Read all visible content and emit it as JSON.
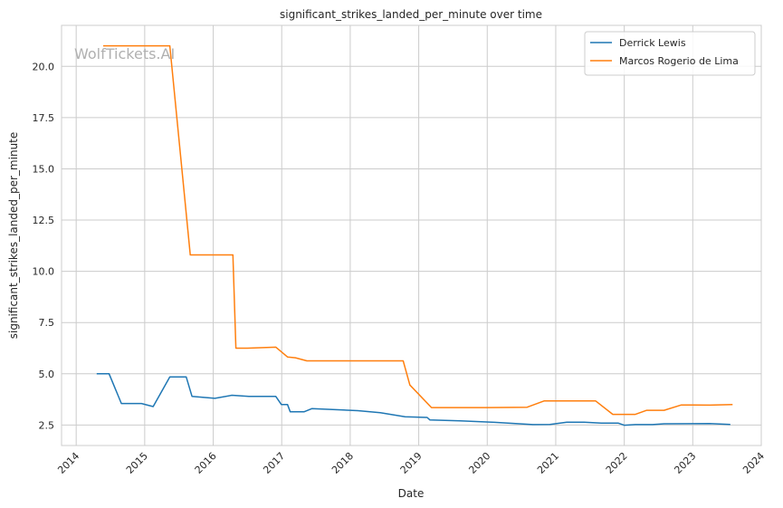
{
  "chart_data": {
    "type": "line",
    "title": "significant_strikes_landed_per_minute over time",
    "xlabel": "Date",
    "ylabel": "significant_strikes_landed_per_minute",
    "watermark": "WolfTickets.AI",
    "x_ticks": [
      "2014",
      "2015",
      "2016",
      "2017",
      "2018",
      "2019",
      "2020",
      "2021",
      "2022",
      "2023",
      "2024"
    ],
    "y_ticks": [
      "2.5",
      "5.0",
      "7.5",
      "10.0",
      "12.5",
      "15.0",
      "17.5",
      "20.0"
    ],
    "xlim": [
      "2013-10-15",
      "2024-01-01"
    ],
    "ylim": [
      1.5,
      22.0
    ],
    "grid": true,
    "legend_position": "top-right",
    "series": [
      {
        "name": "Derrick Lewis",
        "color": "#1f77b4",
        "points": [
          [
            "2014-04-20",
            5.0
          ],
          [
            "2014-06-25",
            5.0
          ],
          [
            "2014-08-30",
            3.55
          ],
          [
            "2014-12-15",
            3.55
          ],
          [
            "2015-02-15",
            3.4
          ],
          [
            "2015-05-15",
            4.85
          ],
          [
            "2015-08-10",
            4.85
          ],
          [
            "2015-09-10",
            3.9
          ],
          [
            "2016-01-10",
            3.8
          ],
          [
            "2016-04-10",
            3.95
          ],
          [
            "2016-07-10",
            3.9
          ],
          [
            "2016-11-30",
            3.9
          ],
          [
            "2016-12-30",
            3.5
          ],
          [
            "2017-02-01",
            3.5
          ],
          [
            "2017-02-15",
            3.15
          ],
          [
            "2017-05-01",
            3.15
          ],
          [
            "2017-06-10",
            3.3
          ],
          [
            "2018-02-10",
            3.2
          ],
          [
            "2018-06-10",
            3.1
          ],
          [
            "2018-10-20",
            2.9
          ],
          [
            "2019-02-15",
            2.87
          ],
          [
            "2019-03-01",
            2.75
          ],
          [
            "2019-08-10",
            2.7
          ],
          [
            "2020-02-10",
            2.63
          ],
          [
            "2020-09-01",
            2.52
          ],
          [
            "2020-12-01",
            2.53
          ],
          [
            "2021-03-01",
            2.64
          ],
          [
            "2021-06-01",
            2.64
          ],
          [
            "2021-09-01",
            2.59
          ],
          [
            "2021-12-01",
            2.59
          ],
          [
            "2022-01-01",
            2.49
          ],
          [
            "2022-03-01",
            2.52
          ],
          [
            "2022-06-01",
            2.52
          ],
          [
            "2022-08-01",
            2.56
          ],
          [
            "2023-04-01",
            2.57
          ],
          [
            "2023-07-20",
            2.53
          ]
        ]
      },
      {
        "name": "Marcos Rogerio de Lima",
        "color": "#ff7f0e",
        "points": [
          [
            "2014-05-25",
            21.0
          ],
          [
            "2015-05-15",
            21.0
          ],
          [
            "2015-09-01",
            10.8
          ],
          [
            "2016-04-15",
            10.8
          ],
          [
            "2016-05-01",
            6.25
          ],
          [
            "2016-07-01",
            6.25
          ],
          [
            "2016-12-01",
            6.3
          ],
          [
            "2017-02-01",
            5.82
          ],
          [
            "2017-03-15",
            5.78
          ],
          [
            "2017-05-15",
            5.63
          ],
          [
            "2018-10-10",
            5.63
          ],
          [
            "2018-11-15",
            4.45
          ],
          [
            "2019-03-10",
            3.35
          ],
          [
            "2019-09-10",
            3.35
          ],
          [
            "2020-01-01",
            3.35
          ],
          [
            "2020-08-01",
            3.37
          ],
          [
            "2020-11-01",
            3.68
          ],
          [
            "2021-03-01",
            3.68
          ],
          [
            "2021-08-01",
            3.68
          ],
          [
            "2021-11-01",
            3.02
          ],
          [
            "2022-03-01",
            3.02
          ],
          [
            "2022-05-01",
            3.22
          ],
          [
            "2022-08-01",
            3.22
          ],
          [
            "2022-11-01",
            3.48
          ],
          [
            "2023-01-01",
            3.48
          ],
          [
            "2023-04-01",
            3.47
          ],
          [
            "2023-08-01",
            3.5
          ]
        ]
      }
    ]
  }
}
